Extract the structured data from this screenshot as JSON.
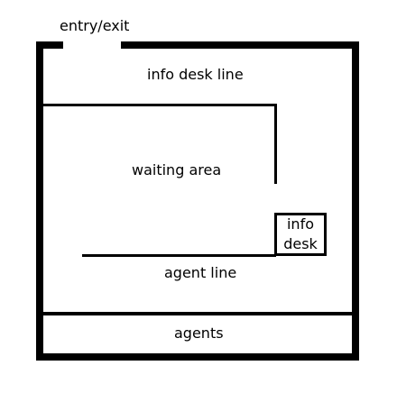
{
  "labels": {
    "entry_exit": "entry/exit",
    "info_desk_line": "info desk line",
    "waiting_area": "waiting area",
    "info_desk_line1": "info",
    "info_desk_line2": "desk",
    "agent_line": "agent line",
    "agents": "agents"
  },
  "colors": {
    "wall": "#000000",
    "background": "#ffffff",
    "text": "#000000"
  }
}
